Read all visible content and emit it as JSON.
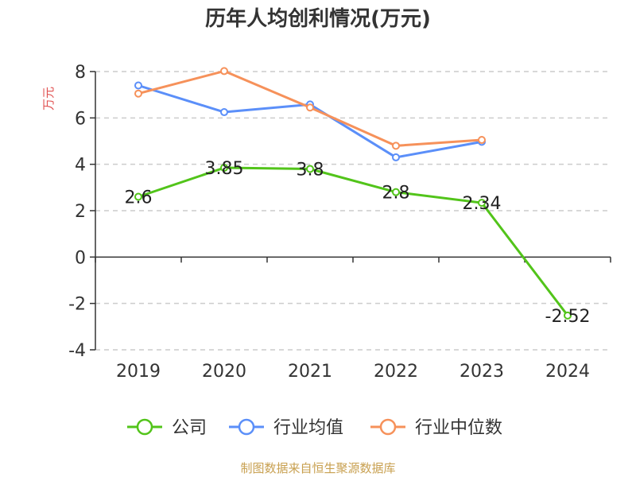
{
  "chart_data": {
    "type": "line",
    "title": "历年人均创利情况(万元)",
    "ylabel": "万元",
    "categories": [
      "2019",
      "2020",
      "2021",
      "2022",
      "2023",
      "2024"
    ],
    "ylim": [
      -4,
      8
    ],
    "yticks": [
      -4,
      -2,
      0,
      2,
      4,
      6,
      8
    ],
    "grid": true,
    "legend_position": "bottom",
    "series": [
      {
        "name": "公司",
        "color": "#52c41a",
        "values": [
          2.6,
          3.85,
          3.8,
          2.8,
          2.34,
          -2.52
        ],
        "labels": [
          "2.6",
          "3.85",
          "3.8",
          "2.8",
          "2.34",
          "-2.52"
        ]
      },
      {
        "name": "行业均值",
        "color": "#5b8ff9",
        "values": [
          7.4,
          6.25,
          6.58,
          4.3,
          4.97,
          null
        ]
      },
      {
        "name": "行业中位数",
        "color": "#f6915a",
        "values": [
          7.05,
          8.02,
          6.45,
          4.8,
          5.05,
          null
        ]
      }
    ]
  },
  "source_text": "制图数据来自恒生聚源数据库"
}
